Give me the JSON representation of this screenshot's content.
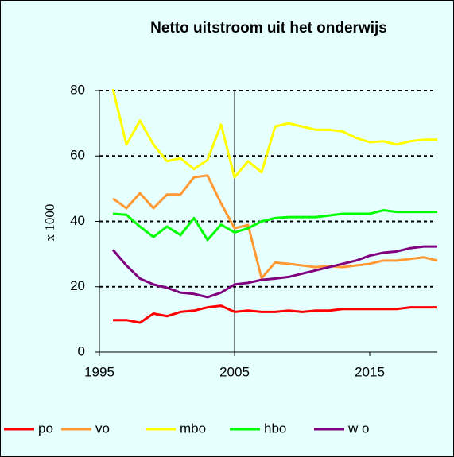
{
  "chart_data": {
    "type": "line",
    "title": "Netto uitstroom uit het onderwijs",
    "y_label": "x 1000",
    "x": [
      1996,
      1997,
      1998,
      1999,
      2000,
      2001,
      2002,
      2003,
      2004,
      2005,
      2006,
      2007,
      2008,
      2009,
      2010,
      2011,
      2012,
      2013,
      2014,
      2015,
      2016,
      2017,
      2018,
      2019,
      2020
    ],
    "series": [
      {
        "name": "po",
        "color": "#ff0000",
        "values": [
          9.8,
          9.8,
          9,
          11.8,
          11,
          12.3,
          12.7,
          13.7,
          14.2,
          12.3,
          12.7,
          12.3,
          12.3,
          12.7,
          12.3,
          12.7,
          12.7,
          13.2,
          13.2,
          13.2,
          13.2,
          13.2,
          13.7,
          13.7,
          13.7
        ]
      },
      {
        "name": "vo",
        "color": "#ff9933",
        "values": [
          47,
          44,
          48.6,
          44,
          48.2,
          48.2,
          53.5,
          54,
          45.5,
          37.9,
          38.9,
          22.6,
          27.4,
          27,
          26.5,
          26,
          26.3,
          26,
          26.5,
          27,
          28,
          28,
          28.5,
          29,
          28
        ]
      },
      {
        "name": "mbo",
        "color": "#ffff00",
        "values": [
          80.5,
          63.5,
          70.8,
          63.5,
          58.4,
          59.3,
          56,
          58.8,
          69.6,
          53.5,
          58.4,
          55,
          69,
          70,
          69,
          68,
          68,
          67.5,
          65.5,
          64.2,
          64.5,
          63.5,
          64.5,
          65,
          65
        ]
      },
      {
        "name": "hbo",
        "color": "#00ff00",
        "values": [
          42.3,
          42,
          38.4,
          35.2,
          38.4,
          35.8,
          41,
          34.3,
          39,
          36.6,
          37.9,
          40,
          41,
          41.3,
          41.3,
          41.3,
          41.8,
          42.3,
          42.3,
          42.3,
          43.4,
          42.9,
          42.9,
          42.9,
          42.9
        ]
      },
      {
        "name": "w o",
        "color": "#800080",
        "values": [
          31.3,
          26.5,
          22.5,
          20.7,
          19.7,
          18.2,
          17.8,
          16.8,
          18.2,
          20.7,
          21.2,
          22.1,
          22.5,
          23,
          24,
          25,
          26,
          27,
          28,
          29.5,
          30.4,
          30.8,
          31.8,
          32.3,
          32.3
        ]
      }
    ],
    "xlim": [
      1995,
      2020
    ],
    "xticks": [
      1995,
      2005,
      2015
    ],
    "ylim": [
      0,
      80
    ],
    "yticks": [
      0,
      20,
      40,
      60,
      80
    ],
    "grid": true,
    "vline": 2005,
    "legend": "bottom"
  }
}
